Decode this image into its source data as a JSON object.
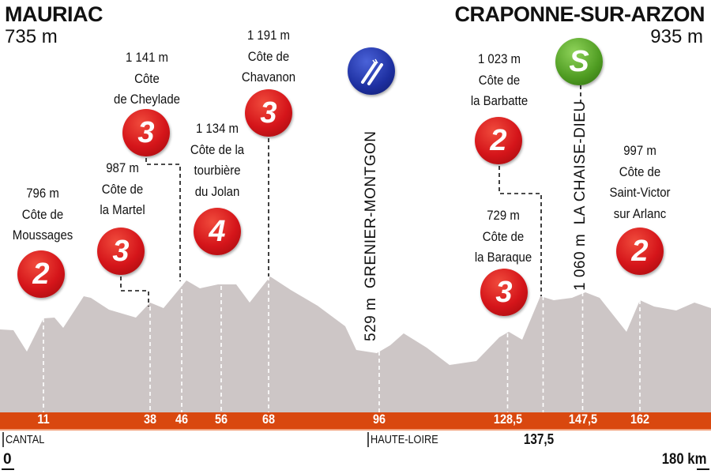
{
  "start": {
    "city": "MAURIAC",
    "altitude": "735 m"
  },
  "finish": {
    "city": "CRAPONNE-SUR-ARZON",
    "altitude": "935 m"
  },
  "climbs": [
    {
      "altitude": "796 m",
      "name_lines": [
        "Côte de",
        "Moussages"
      ],
      "category": "2",
      "km": "11"
    },
    {
      "altitude": "987 m",
      "name_lines": [
        "Côte de",
        "la Martel"
      ],
      "category": "3",
      "km": "38"
    },
    {
      "altitude": "1 141 m",
      "name_lines": [
        "Côte",
        "de Cheylade"
      ],
      "category": "3",
      "km": "46"
    },
    {
      "altitude": "1 134 m",
      "name_lines": [
        "Côte de la",
        "tourbière",
        "du Jolan"
      ],
      "category": "4",
      "km": "56"
    },
    {
      "altitude": "1 191 m",
      "name_lines": [
        "Côte de",
        "Chavanon"
      ],
      "category": "3",
      "km": "68"
    },
    {
      "altitude": "1 023 m",
      "name_lines": [
        "Côte de",
        "la Barbatte"
      ],
      "category": "2",
      "km": "137,5"
    },
    {
      "altitude": "729 m",
      "name_lines": [
        "Côte de",
        "la Baraque"
      ],
      "category": "3",
      "km": "128,5"
    },
    {
      "altitude": "997 m",
      "name_lines": [
        "Côte de",
        "Saint-Victor",
        "sur Arlanc"
      ],
      "category": "2",
      "km": "162"
    }
  ],
  "feed_zone": {
    "icon": "fork-knife-icon",
    "altitude": "529 m",
    "place": "GRENIER-MONTGON",
    "km": "96",
    "color": "#1d2fa0"
  },
  "sprint": {
    "icon": "S",
    "altitude": "1 060 m",
    "place": "LA CHAISE-DIEU",
    "km": "147,5",
    "color": "#4e9b21"
  },
  "km_markers": [
    11,
    38,
    46,
    56,
    68,
    96,
    128.5,
    147.5,
    162
  ],
  "km_labels": [
    "11",
    "38",
    "46",
    "56",
    "68",
    "96",
    "128,5",
    "147,5",
    "162"
  ],
  "extra_km_label": "137,5",
  "departments": [
    "CANTAL",
    "HAUTE-LOIRE"
  ],
  "axis": {
    "start": "0",
    "end": "180 km",
    "total_km": 180
  },
  "colors": {
    "profile": "#cdc6c6",
    "bar": "#d9480f",
    "climb_badge": "#d5151a"
  }
}
